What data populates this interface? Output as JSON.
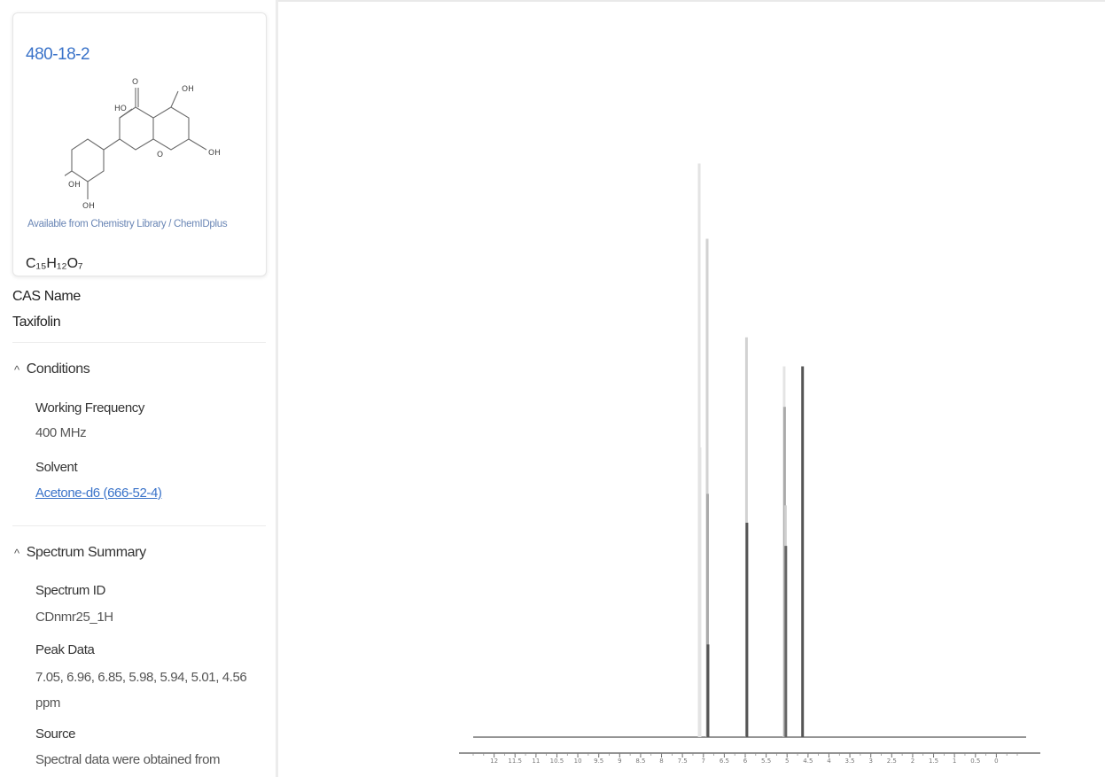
{
  "compound": {
    "cas_number": "480-18-2",
    "formula": "C₁₅H₁₂O₇",
    "cas_name_label": "CAS Name",
    "cas_name": "Taxifolin",
    "structure_attribution": "Available from Chemistry Library / ChemIDplus",
    "structure_atoms": [
      "O",
      "OH",
      "HO",
      "O",
      "OH",
      "OH",
      "OH"
    ]
  },
  "conditions": {
    "title": "Conditions",
    "frequency_label": "Working Frequency",
    "frequency_value": "400 MHz",
    "solvent_label": "Solvent",
    "solvent_value": "Acetone-d6 (666-52-4)"
  },
  "summary": {
    "title": "Spectrum Summary",
    "spectrum_id_label": "Spectrum ID",
    "spectrum_id_value": "CDnmr25_1H",
    "peak_label": "Peak Data",
    "peak_value": "7.05, 6.96, 6.85, 5.98, 5.94, 5.01, 4.56 ppm",
    "source_label": "Source",
    "source_value": "Spectral data were obtained from"
  },
  "chart_data": {
    "type": "line",
    "title": "",
    "xlabel": "",
    "ylabel": "",
    "x_reversed": true,
    "xlim": [
      12.5,
      -0.5
    ],
    "ylim": [
      0,
      1
    ],
    "x_ticks": [
      12,
      11.5,
      11,
      10.5,
      10,
      9.5,
      9,
      8.5,
      8,
      7.5,
      7,
      6.5,
      6,
      5.5,
      5,
      4.5,
      4,
      3.5,
      3,
      2.5,
      2,
      1.5,
      1,
      0.5,
      0
    ],
    "grid": false,
    "peaks": [
      {
        "x": 7.1,
        "y": 0.99,
        "color": "#e4e4e4"
      },
      {
        "x": 7.08,
        "y": 0.5,
        "color": "#e4e4e4"
      },
      {
        "x": 6.91,
        "y": 0.86,
        "color": "#d2d2d2"
      },
      {
        "x": 6.9,
        "y": 0.42,
        "color": "#aaaaaa"
      },
      {
        "x": 6.89,
        "y": 0.16,
        "color": "#555555"
      },
      {
        "x": 5.97,
        "y": 0.69,
        "color": "#d2d2d2"
      },
      {
        "x": 5.96,
        "y": 0.37,
        "color": "#555555"
      },
      {
        "x": 5.07,
        "y": 0.64,
        "color": "#e4e4e4"
      },
      {
        "x": 5.06,
        "y": 0.57,
        "color": "#aaaaaa"
      },
      {
        "x": 5.04,
        "y": 0.4,
        "color": "#cfcfcf"
      },
      {
        "x": 5.03,
        "y": 0.33,
        "color": "#666666"
      },
      {
        "x": 4.63,
        "y": 0.64,
        "color": "#555555"
      }
    ]
  }
}
